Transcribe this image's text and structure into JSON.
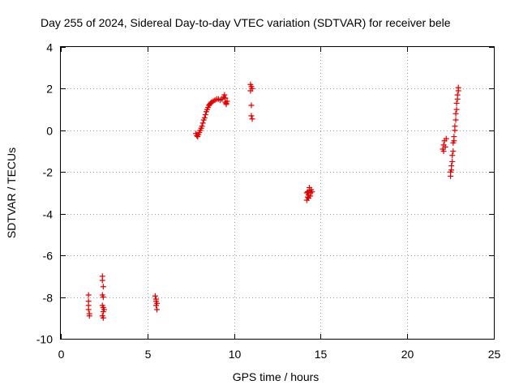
{
  "chart_data": {
    "type": "scatter",
    "title": "Day 255 of 2024, Sidereal Day-to-day VTEC variation (SDTVAR) for receiver bele",
    "xlabel": "GPS time / hours",
    "ylabel": "SDTVAR / TECUs",
    "xlim": [
      0,
      25
    ],
    "ylim": [
      -10,
      4
    ],
    "xticks": [
      0,
      5,
      10,
      15,
      20,
      25
    ],
    "xtick_labels": [
      "0",
      "5",
      "10",
      "15",
      "20",
      "25"
    ],
    "yticks": [
      -10,
      -8,
      -6,
      -4,
      -2,
      0,
      2,
      4
    ],
    "ytick_labels": [
      "-10",
      "-8",
      "-6",
      "-4",
      "-2",
      "0",
      "2",
      "4"
    ],
    "grid": true,
    "marker": "+",
    "marker_color": "#e00000",
    "series": [
      {
        "name": "SDTVAR",
        "points": [
          [
            1.6,
            -7.9
          ],
          [
            1.6,
            -8.2
          ],
          [
            1.6,
            -8.4
          ],
          [
            1.6,
            -8.6
          ],
          [
            1.65,
            -8.8
          ],
          [
            1.65,
            -8.9
          ],
          [
            2.4,
            -7.0
          ],
          [
            2.4,
            -7.2
          ],
          [
            2.45,
            -7.5
          ],
          [
            2.4,
            -7.9
          ],
          [
            2.45,
            -8.0
          ],
          [
            2.4,
            -8.4
          ],
          [
            2.45,
            -8.5
          ],
          [
            2.5,
            -8.6
          ],
          [
            2.45,
            -8.7
          ],
          [
            2.4,
            -8.9
          ],
          [
            2.45,
            -9.0
          ],
          [
            5.45,
            -7.95
          ],
          [
            5.5,
            -8.1
          ],
          [
            5.5,
            -8.2
          ],
          [
            5.55,
            -8.3
          ],
          [
            5.5,
            -8.4
          ],
          [
            5.55,
            -8.6
          ],
          [
            7.8,
            -0.15
          ],
          [
            7.85,
            -0.25
          ],
          [
            7.9,
            -0.3
          ],
          [
            7.95,
            -0.2
          ],
          [
            8.0,
            -0.1
          ],
          [
            8.05,
            0.0
          ],
          [
            8.1,
            0.1
          ],
          [
            8.15,
            0.2
          ],
          [
            8.2,
            0.35
          ],
          [
            8.25,
            0.5
          ],
          [
            8.3,
            0.6
          ],
          [
            8.35,
            0.75
          ],
          [
            8.4,
            0.9
          ],
          [
            8.45,
            1.0
          ],
          [
            8.5,
            1.1
          ],
          [
            8.55,
            1.2
          ],
          [
            8.6,
            1.25
          ],
          [
            8.65,
            1.3
          ],
          [
            8.7,
            1.35
          ],
          [
            8.8,
            1.4
          ],
          [
            8.9,
            1.45
          ],
          [
            9.0,
            1.5
          ],
          [
            9.1,
            1.5
          ],
          [
            9.2,
            1.45
          ],
          [
            9.3,
            1.5
          ],
          [
            9.4,
            1.6
          ],
          [
            9.45,
            1.7
          ],
          [
            9.5,
            1.55
          ],
          [
            9.5,
            1.35
          ],
          [
            9.55,
            1.3
          ],
          [
            9.6,
            1.4
          ],
          [
            9.55,
            1.25
          ],
          [
            10.95,
            2.2
          ],
          [
            11.0,
            2.1
          ],
          [
            11.05,
            2.0
          ],
          [
            10.95,
            1.9
          ],
          [
            11.0,
            1.2
          ],
          [
            11.0,
            0.7
          ],
          [
            11.05,
            0.55
          ],
          [
            14.2,
            -3.0
          ],
          [
            14.25,
            -3.2
          ],
          [
            14.2,
            -3.35
          ],
          [
            14.3,
            -3.1
          ],
          [
            14.35,
            -2.9
          ],
          [
            14.3,
            -3.25
          ],
          [
            14.4,
            -3.0
          ],
          [
            14.45,
            -2.85
          ],
          [
            14.4,
            -3.15
          ],
          [
            14.5,
            -2.95
          ],
          [
            14.35,
            -2.75
          ],
          [
            14.25,
            -2.95
          ],
          [
            22.05,
            -0.9
          ],
          [
            22.1,
            -0.7
          ],
          [
            22.15,
            -0.5
          ],
          [
            22.2,
            -0.8
          ],
          [
            22.25,
            -0.4
          ],
          [
            22.1,
            -1.0
          ],
          [
            22.5,
            -2.2
          ],
          [
            22.5,
            -2.0
          ],
          [
            22.55,
            -1.9
          ],
          [
            22.55,
            -1.7
          ],
          [
            22.6,
            -1.5
          ],
          [
            22.6,
            -1.2
          ],
          [
            22.65,
            -1.0
          ],
          [
            22.65,
            -0.6
          ],
          [
            22.7,
            -0.5
          ],
          [
            22.7,
            -0.3
          ],
          [
            22.75,
            0.0
          ],
          [
            22.75,
            0.2
          ],
          [
            22.8,
            0.5
          ],
          [
            22.8,
            0.8
          ],
          [
            22.85,
            1.0
          ],
          [
            22.85,
            1.3
          ],
          [
            22.9,
            1.5
          ],
          [
            22.9,
            1.7
          ],
          [
            22.95,
            1.9
          ],
          [
            22.95,
            2.05
          ]
        ]
      }
    ]
  }
}
